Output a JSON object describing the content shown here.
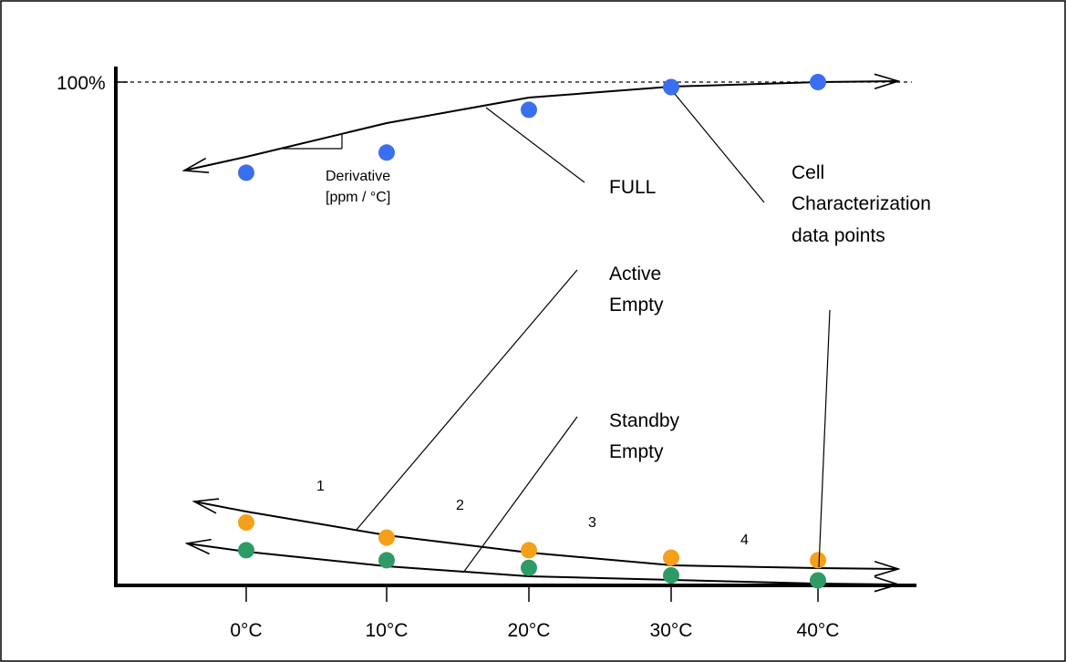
{
  "chart_data": {
    "type": "line",
    "y_reference_label": "100%",
    "categories": [
      "0°C",
      "10°C",
      "20°C",
      "30°C",
      "40°C"
    ],
    "series": [
      {
        "key": "full",
        "values": [
          0.82,
          0.86,
          0.945,
          0.99,
          1.0
        ],
        "color": "#3a6ff0"
      },
      {
        "key": "active_empty",
        "values": [
          0.125,
          0.095,
          0.07,
          0.055,
          0.05
        ],
        "color": "#f5a01a"
      },
      {
        "key": "standby_empty",
        "values": [
          0.07,
          0.05,
          0.035,
          0.02,
          0.01
        ],
        "color": "#2e9a65"
      }
    ]
  },
  "labels": {
    "full": "FULL",
    "derivative": [
      "Derivative",
      "[ppm / °C]"
    ],
    "cell_char": [
      "Cell",
      "Characterization",
      "data points"
    ],
    "active_empty": [
      "Active",
      "Empty"
    ],
    "standby_empty": [
      "Standby",
      "Empty"
    ],
    "regions": [
      "1",
      "2",
      "3",
      "4"
    ]
  }
}
